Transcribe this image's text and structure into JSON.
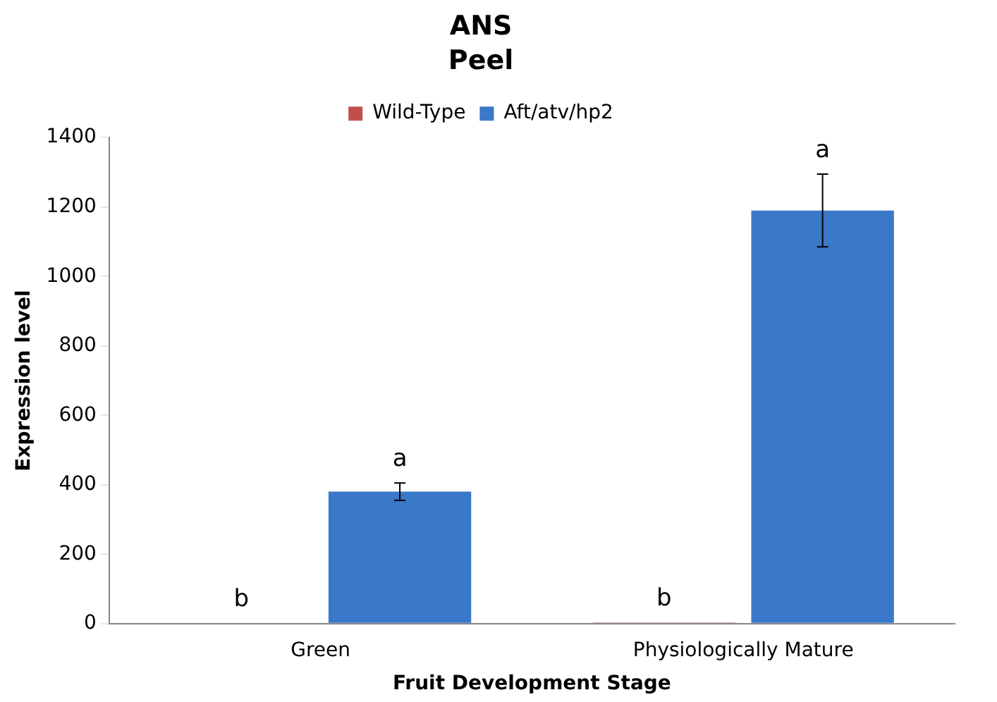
{
  "chart_data": {
    "type": "bar",
    "title": "ANS",
    "subtitle": "Peel",
    "xlabel": "Fruit Development Stage",
    "ylabel": "Expression level",
    "categories": [
      "Green",
      "Physiologically Mature"
    ],
    "series": [
      {
        "name": "Wild-Type",
        "color": "#c0504d",
        "values": [
          2,
          3
        ],
        "errors": [
          null,
          null
        ],
        "value_labels": [
          "b",
          "b"
        ]
      },
      {
        "name": "Aft/atv/hp2",
        "color": "#3a78c9",
        "values": [
          380,
          1190
        ],
        "errors": [
          25,
          105
        ],
        "value_labels": [
          "a",
          "a"
        ]
      }
    ],
    "ylim": [
      0,
      1400
    ],
    "yticks": [
      0,
      200,
      400,
      600,
      800,
      1000,
      1200,
      1400
    ],
    "grid": false,
    "legend": "top"
  }
}
